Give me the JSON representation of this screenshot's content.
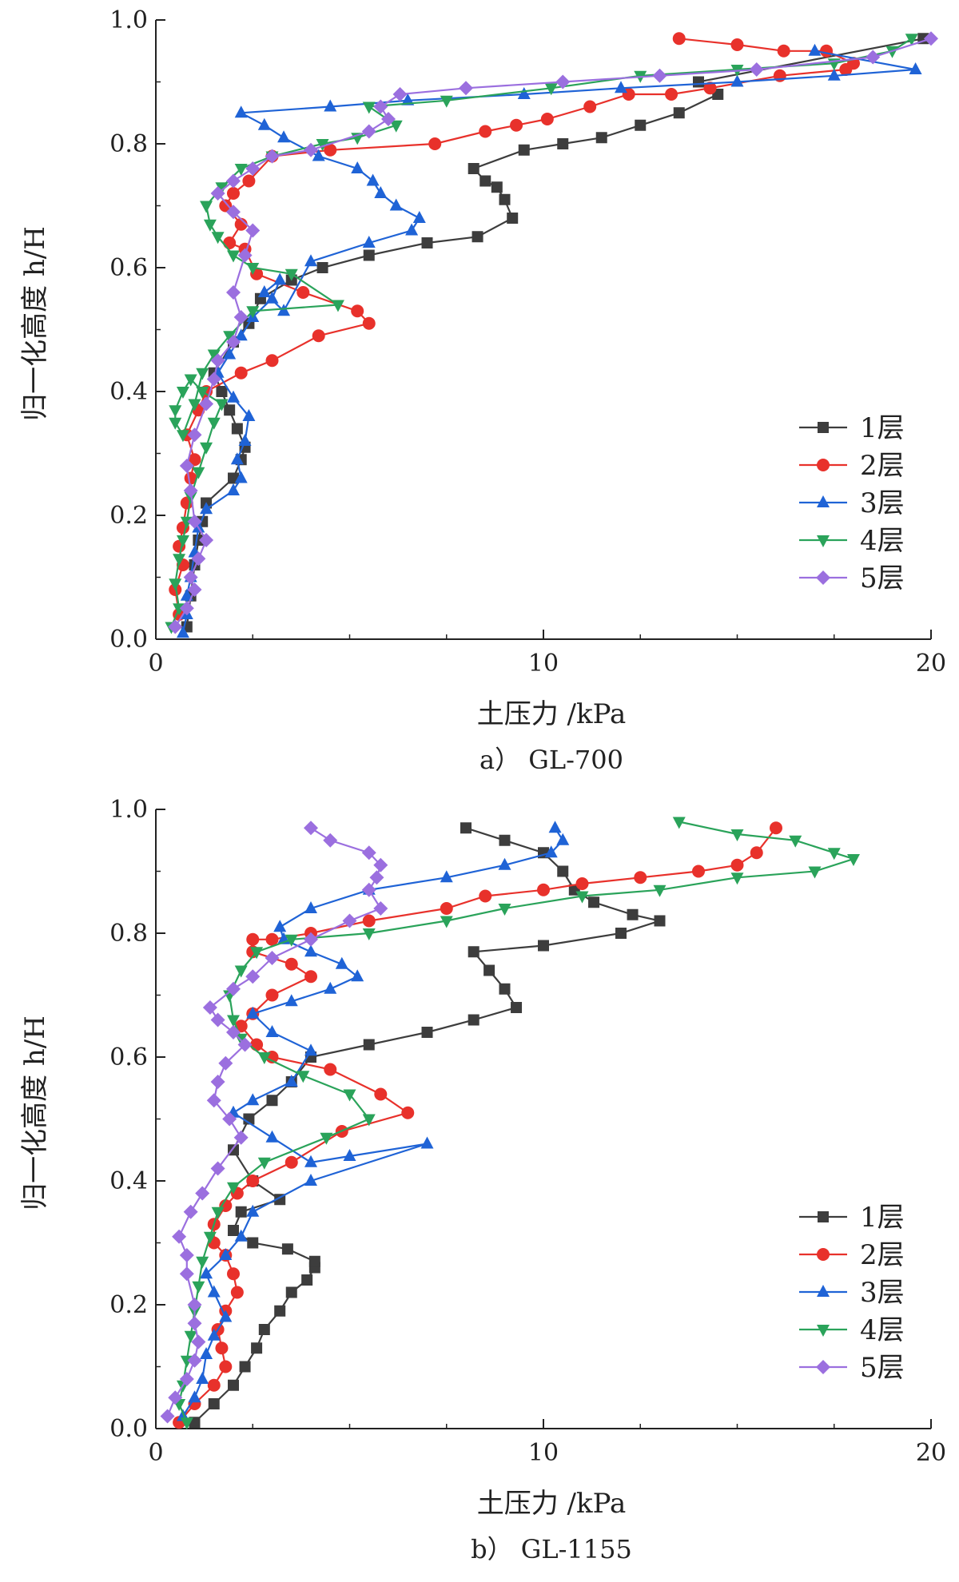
{
  "charts": [
    {
      "caption": "a）  GL-700",
      "chart_data": {
        "type": "line",
        "xlabel": "土压力 /kPa",
        "ylabel": "归一化高度 h/H",
        "xlim": [
          0,
          20
        ],
        "ylim": [
          0,
          1.0
        ],
        "xticks": [
          "0",
          "10",
          "20"
        ],
        "yticks": [
          "0.0",
          "0.2",
          "0.4",
          "0.6",
          "0.8",
          "1.0"
        ],
        "grid": false,
        "legend_position": "bottom-right",
        "series": [
          {
            "name": "1层",
            "color": "#3d3d3d",
            "marker": "square",
            "x": [
              0.8,
              0.9,
              1.0,
              1.1,
              1.2,
              1.3,
              2.0,
              2.2,
              2.3,
              2.1,
              1.9,
              1.7,
              1.5,
              2.0,
              2.4,
              2.7,
              3.5,
              4.3,
              5.5,
              7.0,
              8.3,
              9.2,
              9.0,
              8.8,
              8.5,
              8.2,
              9.5,
              10.5,
              11.5,
              12.5,
              13.5,
              14.5,
              14.0,
              19.8
            ],
            "y": [
              0.02,
              0.07,
              0.12,
              0.16,
              0.19,
              0.22,
              0.26,
              0.29,
              0.31,
              0.34,
              0.37,
              0.4,
              0.43,
              0.48,
              0.51,
              0.55,
              0.58,
              0.6,
              0.62,
              0.64,
              0.65,
              0.68,
              0.71,
              0.73,
              0.74,
              0.76,
              0.79,
              0.8,
              0.81,
              0.83,
              0.85,
              0.88,
              0.9,
              0.97
            ]
          },
          {
            "name": "2层",
            "color": "#e8312b",
            "marker": "circle",
            "x": [
              0.6,
              0.5,
              0.7,
              0.6,
              0.7,
              0.8,
              0.9,
              1.0,
              0.8,
              1.1,
              1.3,
              2.2,
              3.0,
              4.2,
              5.5,
              5.2,
              3.8,
              2.6,
              2.3,
              1.9,
              2.2,
              1.8,
              2.0,
              2.4,
              3.0,
              4.5,
              7.2,
              8.5,
              9.3,
              10.1,
              11.2,
              12.2,
              13.3,
              14.3,
              16.1,
              17.8,
              18.0,
              17.3,
              16.2,
              15.0,
              13.5
            ],
            "y": [
              0.04,
              0.08,
              0.12,
              0.15,
              0.18,
              0.22,
              0.26,
              0.29,
              0.33,
              0.37,
              0.4,
              0.43,
              0.45,
              0.49,
              0.51,
              0.53,
              0.56,
              0.59,
              0.63,
              0.64,
              0.67,
              0.7,
              0.72,
              0.74,
              0.78,
              0.79,
              0.8,
              0.82,
              0.83,
              0.84,
              0.86,
              0.88,
              0.88,
              0.89,
              0.91,
              0.92,
              0.93,
              0.95,
              0.95,
              0.96,
              0.97
            ]
          },
          {
            "name": "3层",
            "color": "#1f63d6",
            "marker": "triangle-up",
            "x": [
              0.7,
              0.8,
              0.8,
              0.9,
              1.0,
              1.1,
              1.3,
              2.0,
              2.2,
              2.1,
              2.3,
              2.4,
              2.0,
              1.6,
              1.9,
              2.2,
              2.5,
              3.0,
              3.2,
              2.8,
              3.3,
              4.0,
              5.5,
              6.6,
              6.8,
              6.2,
              5.8,
              5.6,
              5.2,
              4.2,
              3.3,
              2.8,
              2.2,
              4.5,
              6.5,
              9.5,
              12.0,
              15.0,
              17.5,
              19.6,
              17.0
            ],
            "y": [
              0.01,
              0.04,
              0.07,
              0.1,
              0.14,
              0.18,
              0.21,
              0.24,
              0.26,
              0.29,
              0.32,
              0.36,
              0.39,
              0.43,
              0.46,
              0.49,
              0.52,
              0.55,
              0.58,
              0.56,
              0.53,
              0.61,
              0.64,
              0.66,
              0.68,
              0.7,
              0.72,
              0.74,
              0.76,
              0.78,
              0.81,
              0.83,
              0.85,
              0.86,
              0.87,
              0.88,
              0.89,
              0.9,
              0.91,
              0.92,
              0.95
            ]
          },
          {
            "name": "4层",
            "color": "#2aa35a",
            "marker": "triangle-down",
            "x": [
              0.4,
              0.6,
              0.5,
              0.6,
              0.7,
              0.8,
              0.9,
              1.1,
              1.3,
              1.5,
              1.7,
              1.2,
              0.9,
              0.7,
              0.5,
              0.5,
              0.7,
              1.0,
              1.2,
              1.5,
              1.9,
              2.5,
              4.7,
              3.5,
              2.5,
              2.0,
              1.6,
              1.4,
              1.3,
              1.7,
              2.2,
              3.0,
              4.3,
              5.2,
              6.2,
              5.5,
              7.5,
              10.2,
              12.5,
              15.0,
              17.5,
              19.0,
              19.5
            ],
            "y": [
              0.02,
              0.05,
              0.09,
              0.13,
              0.16,
              0.19,
              0.23,
              0.27,
              0.31,
              0.35,
              0.38,
              0.4,
              0.42,
              0.4,
              0.37,
              0.35,
              0.33,
              0.38,
              0.43,
              0.46,
              0.49,
              0.53,
              0.54,
              0.59,
              0.6,
              0.62,
              0.65,
              0.67,
              0.7,
              0.73,
              0.76,
              0.78,
              0.8,
              0.81,
              0.83,
              0.86,
              0.87,
              0.89,
              0.91,
              0.92,
              0.93,
              0.95,
              0.97
            ]
          },
          {
            "name": "5层",
            "color": "#9b6fdf",
            "marker": "diamond",
            "x": [
              0.5,
              0.8,
              1.0,
              0.9,
              1.1,
              1.3,
              1.0,
              0.9,
              0.8,
              1.0,
              1.3,
              1.5,
              1.6,
              2.0,
              2.2,
              2.0,
              2.3,
              2.5,
              2.0,
              1.6,
              2.0,
              2.5,
              3.0,
              4.0,
              5.5,
              6.0,
              5.8,
              6.3,
              8.0,
              10.5,
              13.0,
              15.5,
              18.5,
              20.0
            ],
            "y": [
              0.02,
              0.05,
              0.08,
              0.1,
              0.13,
              0.16,
              0.19,
              0.24,
              0.28,
              0.33,
              0.38,
              0.42,
              0.45,
              0.48,
              0.52,
              0.56,
              0.62,
              0.66,
              0.69,
              0.72,
              0.74,
              0.76,
              0.78,
              0.79,
              0.82,
              0.84,
              0.86,
              0.88,
              0.89,
              0.9,
              0.91,
              0.92,
              0.94,
              0.97
            ]
          }
        ]
      }
    },
    {
      "caption": "b）  GL-1155",
      "chart_data": {
        "type": "line",
        "xlabel": "土压力 /kPa",
        "ylabel": "归一化高度 h/H",
        "xlim": [
          0,
          20
        ],
        "ylim": [
          0,
          1.0
        ],
        "xticks": [
          "0",
          "10",
          "20"
        ],
        "yticks": [
          "0.0",
          "0.2",
          "0.4",
          "0.6",
          "0.8",
          "1.0"
        ],
        "grid": false,
        "legend_position": "bottom-right",
        "series": [
          {
            "name": "1层",
            "color": "#3d3d3d",
            "marker": "square",
            "x": [
              1.0,
              1.5,
              2.0,
              2.3,
              2.6,
              2.8,
              3.2,
              3.5,
              3.9,
              4.1,
              4.1,
              3.4,
              2.5,
              2.0,
              2.2,
              3.2,
              2.5,
              2.0,
              2.4,
              3.0,
              3.5,
              4.0,
              5.5,
              7.0,
              8.2,
              9.3,
              9.0,
              8.6,
              8.2,
              10.0,
              12.0,
              13.0,
              12.3,
              11.3,
              10.8,
              10.5,
              10.0,
              9.0,
              8.0
            ],
            "y": [
              0.01,
              0.04,
              0.07,
              0.1,
              0.13,
              0.16,
              0.19,
              0.22,
              0.24,
              0.26,
              0.27,
              0.29,
              0.3,
              0.32,
              0.35,
              0.37,
              0.4,
              0.45,
              0.5,
              0.53,
              0.56,
              0.6,
              0.62,
              0.64,
              0.66,
              0.68,
              0.71,
              0.74,
              0.77,
              0.78,
              0.8,
              0.82,
              0.83,
              0.85,
              0.87,
              0.9,
              0.93,
              0.95,
              0.97
            ]
          },
          {
            "name": "2层",
            "color": "#e8312b",
            "marker": "circle",
            "x": [
              0.6,
              1.0,
              1.5,
              1.8,
              1.7,
              1.6,
              1.8,
              2.1,
              2.0,
              1.8,
              1.5,
              1.5,
              1.8,
              2.1,
              2.5,
              3.5,
              4.8,
              6.5,
              5.8,
              4.5,
              3.0,
              2.6,
              2.2,
              2.5,
              3.0,
              4.0,
              3.5,
              2.5,
              2.5,
              3.0,
              4.0,
              5.5,
              7.5,
              8.5,
              10.0,
              11.0,
              12.5,
              14.0,
              15.0,
              15.5,
              16.0
            ],
            "y": [
              0.01,
              0.04,
              0.07,
              0.1,
              0.13,
              0.16,
              0.19,
              0.22,
              0.25,
              0.28,
              0.3,
              0.33,
              0.36,
              0.38,
              0.4,
              0.43,
              0.48,
              0.51,
              0.54,
              0.58,
              0.6,
              0.62,
              0.65,
              0.67,
              0.7,
              0.73,
              0.75,
              0.77,
              0.79,
              0.79,
              0.8,
              0.82,
              0.84,
              0.86,
              0.87,
              0.88,
              0.89,
              0.9,
              0.91,
              0.93,
              0.97
            ]
          },
          {
            "name": "3层",
            "color": "#1f63d6",
            "marker": "triangle-up",
            "x": [
              0.7,
              1.0,
              1.2,
              1.3,
              1.5,
              1.8,
              1.5,
              1.3,
              1.8,
              2.2,
              2.5,
              4.0,
              7.0,
              5.0,
              4.0,
              3.0,
              2.0,
              2.5,
              3.5,
              4.0,
              3.0,
              2.5,
              3.5,
              4.5,
              5.2,
              4.8,
              4.0,
              3.3,
              3.2,
              4.0,
              5.5,
              7.5,
              9.0,
              10.2,
              10.5,
              10.3
            ],
            "y": [
              0.02,
              0.05,
              0.08,
              0.12,
              0.15,
              0.18,
              0.22,
              0.25,
              0.28,
              0.31,
              0.35,
              0.4,
              0.46,
              0.44,
              0.43,
              0.47,
              0.51,
              0.53,
              0.56,
              0.61,
              0.64,
              0.67,
              0.69,
              0.71,
              0.73,
              0.75,
              0.77,
              0.79,
              0.81,
              0.84,
              0.87,
              0.89,
              0.91,
              0.93,
              0.95,
              0.97
            ]
          },
          {
            "name": "4层",
            "color": "#2aa35a",
            "marker": "triangle-down",
            "x": [
              0.8,
              0.6,
              0.7,
              0.8,
              0.9,
              1.0,
              1.1,
              1.2,
              1.4,
              1.6,
              2.0,
              2.8,
              4.4,
              5.5,
              5.0,
              3.8,
              2.8,
              2.2,
              2.0,
              1.9,
              2.2,
              2.6,
              3.5,
              5.5,
              7.5,
              9.0,
              11.0,
              13.0,
              15.0,
              17.0,
              18.0,
              17.5,
              16.5,
              15.0,
              13.5
            ],
            "y": [
              0.01,
              0.04,
              0.07,
              0.11,
              0.15,
              0.19,
              0.23,
              0.27,
              0.31,
              0.35,
              0.39,
              0.43,
              0.47,
              0.5,
              0.54,
              0.57,
              0.6,
              0.63,
              0.66,
              0.7,
              0.74,
              0.77,
              0.79,
              0.8,
              0.82,
              0.84,
              0.86,
              0.87,
              0.89,
              0.9,
              0.92,
              0.93,
              0.95,
              0.96,
              0.98
            ]
          },
          {
            "name": "5层",
            "color": "#9b6fdf",
            "marker": "diamond",
            "x": [
              0.3,
              0.5,
              0.8,
              1.0,
              1.1,
              1.0,
              1.0,
              0.8,
              0.8,
              0.6,
              0.9,
              1.2,
              1.6,
              2.2,
              1.9,
              1.5,
              1.6,
              1.8,
              2.3,
              2.0,
              1.6,
              1.4,
              2.0,
              2.5,
              3.0,
              4.0,
              5.0,
              5.8,
              5.5,
              5.7,
              5.8,
              5.5,
              4.5,
              4.0
            ],
            "y": [
              0.02,
              0.05,
              0.08,
              0.11,
              0.14,
              0.17,
              0.2,
              0.25,
              0.28,
              0.31,
              0.35,
              0.38,
              0.42,
              0.47,
              0.5,
              0.53,
              0.56,
              0.59,
              0.62,
              0.64,
              0.66,
              0.68,
              0.71,
              0.73,
              0.76,
              0.79,
              0.82,
              0.84,
              0.87,
              0.89,
              0.91,
              0.93,
              0.95,
              0.97
            ]
          }
        ]
      }
    }
  ]
}
